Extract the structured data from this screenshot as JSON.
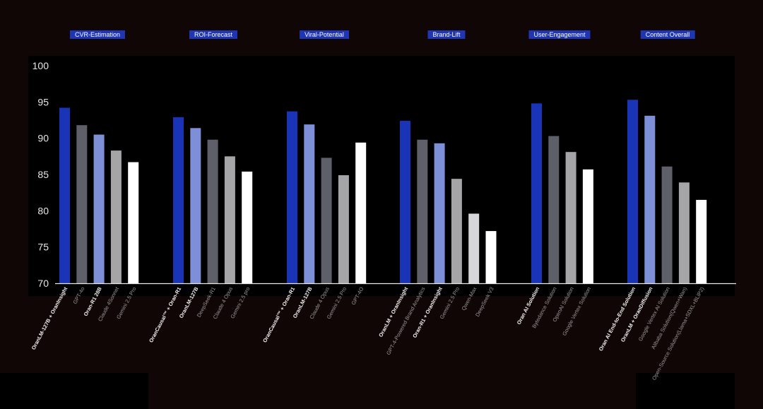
{
  "chart_data": {
    "type": "bar",
    "title": "",
    "xlabel": "",
    "ylabel": "",
    "ylim": [
      70,
      100
    ],
    "yticks": [
      70,
      75,
      80,
      85,
      90,
      95,
      100
    ],
    "grid": false,
    "groups": [
      {
        "name": "CVR-Estimation",
        "bars": [
          {
            "label": "OranLM-127B + OranInsight",
            "value": 94.2,
            "color": "#1a34b8",
            "bold": true
          },
          {
            "label": "GPT-4o",
            "value": 91.8,
            "color": "#5e5f68",
            "bold": false
          },
          {
            "label": "Oran-R1 28B",
            "value": 90.5,
            "color": "#7d8fd6",
            "bold": true
          },
          {
            "label": "Claude 4Sonnet",
            "value": 88.3,
            "color": "#a5a5a8",
            "bold": false
          },
          {
            "label": "Gemini 2.5 Pro",
            "value": 86.7,
            "color": "#ffffff",
            "bold": false
          }
        ]
      },
      {
        "name": "ROI-Forecast",
        "bars": [
          {
            "label": "OranCausal™ + Oran-R1",
            "value": 92.9,
            "color": "#1a34b8",
            "bold": true
          },
          {
            "label": "OranLM-127B",
            "value": 91.4,
            "color": "#7d8fd6",
            "bold": true
          },
          {
            "label": "DeepSeek-R1",
            "value": 89.8,
            "color": "#5e5f68",
            "bold": false
          },
          {
            "label": "Claude 4 Opus",
            "value": 87.5,
            "color": "#a5a5a8",
            "bold": false
          },
          {
            "label": "Gemini 2.5 pro",
            "value": 85.4,
            "color": "#ffffff",
            "bold": false
          }
        ]
      },
      {
        "name": "Viral-Potential",
        "bars": [
          {
            "label": "OranCausal™ + Oran-R1",
            "value": 93.7,
            "color": "#1a34b8",
            "bold": true
          },
          {
            "label": "OranLM-127B",
            "value": 91.9,
            "color": "#7d8fd6",
            "bold": true
          },
          {
            "label": "Claude 4 Opus",
            "value": 87.3,
            "color": "#5e5f68",
            "bold": false
          },
          {
            "label": "Gemini 2.5 Pro",
            "value": 84.9,
            "color": "#a5a5a8",
            "bold": false
          },
          {
            "label": "GPT-4O",
            "value": 89.4,
            "color": "#ffffff",
            "bold": false
          }
        ]
      },
      {
        "name": "Brand-Lift",
        "bars": [
          {
            "label": "OranLM + OranInsight",
            "value": 92.4,
            "color": "#1a34b8",
            "bold": true
          },
          {
            "label": "GPT-4-Powered Brand Analytics",
            "value": 89.8,
            "color": "#5e5f68",
            "bold": false
          },
          {
            "label": "Oran-R1 + OranInsight",
            "value": 89.3,
            "color": "#7d8fd6",
            "bold": true
          },
          {
            "label": "Gemini 2.5 Pro",
            "value": 84.4,
            "color": "#a5a5a8",
            "bold": false
          },
          {
            "label": "Qwen-Max",
            "value": 79.6,
            "color": "#d7d7d9",
            "bold": false
          },
          {
            "label": "DeepSeek V3",
            "value": 77.2,
            "color": "#ffffff",
            "bold": false
          }
        ]
      },
      {
        "name": "User-Engagement",
        "bars": [
          {
            "label": "Oran AI Solution",
            "value": 94.8,
            "color": "#1a34b8",
            "bold": true
          },
          {
            "label": "Bytedance Solution",
            "value": 90.3,
            "color": "#5e5f68",
            "bold": false
          },
          {
            "label": "OpenAI Solution",
            "value": 88.1,
            "color": "#a5a5a8",
            "bold": false
          },
          {
            "label": "Google Vertex Solution",
            "value": 85.7,
            "color": "#ffffff",
            "bold": false
          }
        ]
      },
      {
        "name": "Content Overall",
        "bars": [
          {
            "label": "Oran AI End-to-End Solution",
            "value": 95.3,
            "color": "#1a34b8",
            "bold": true
          },
          {
            "label": "OranLM + OranDiffusion",
            "value": 93.1,
            "color": "#7d8fd6",
            "bold": true
          },
          {
            "label": "Google Vertex AI Solution",
            "value": 86.1,
            "color": "#5e5f68",
            "bold": false
          },
          {
            "label": "Alibaba Solution(Qwen+Wan)",
            "value": 83.9,
            "color": "#a5a5a8",
            "bold": false
          },
          {
            "label": "Open-Source Solution(Llama+SDXL+BLIP2)",
            "value": 81.5,
            "color": "#ffffff",
            "bold": false
          }
        ]
      }
    ]
  }
}
